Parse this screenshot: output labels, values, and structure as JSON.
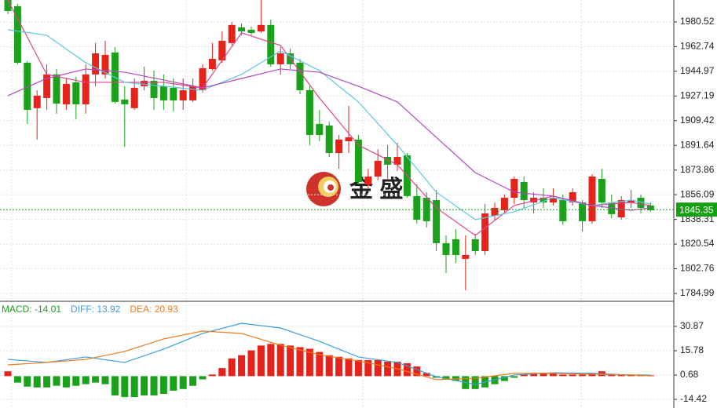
{
  "chart_data": [
    {
      "type": "candlestick",
      "up_color": "#e5231b",
      "down_color": "#1ba11b",
      "open": [
        1996.3,
        1991.8,
        1951.1,
        1918.4,
        1925.7,
        1942.7,
        1921.2,
        1937.0,
        1921.2,
        1942.7,
        1942.7,
        1958.5,
        1924.6,
        1918.4,
        1934.2,
        1938.1,
        1934.2,
        1933.0,
        1924.0,
        1924.0,
        1931.3,
        1946.6,
        1952.8,
        1965.3,
        1976.6,
        1974.9,
        1973.7,
        1978.3,
        1950.0,
        1957.9,
        1951.1,
        1931.3,
        1907.0,
        1905.9,
        1886.1,
        1894.6,
        1895.8,
        1863.5,
        1869.2,
        1883.3,
        1877.7,
        1884.4,
        1855.1,
        1853.9,
        1852.2,
        1821.2,
        1824.0,
        1809.9,
        1824.0,
        1815.5,
        1840.9,
        1844.9,
        1853.9,
        1865.2,
        1850.5,
        1853.9,
        1850.5,
        1852.2,
        1850.5,
        1850.5,
        1837.0,
        1867.5,
        1850.5,
        1839.8,
        1850.5,
        1853.9,
        1848.3
      ],
      "high": [
        1996.3,
        1993.5,
        1952.3,
        1931.3,
        1950.0,
        1946.6,
        1939.8,
        1941.0,
        1950.0,
        1965.3,
        1966.9,
        1962.4,
        1934.2,
        1939.8,
        1948.3,
        1945.5,
        1942.7,
        1939.8,
        1939.8,
        1939.8,
        1950.0,
        1965.3,
        1973.7,
        1980.5,
        1979.4,
        1977.1,
        1996.3,
        1982.2,
        1962.4,
        1961.3,
        1953.9,
        1934.2,
        1917.2,
        1908.7,
        1899.1,
        1920.1,
        1899.1,
        1874.8,
        1888.9,
        1891.8,
        1893.5,
        1886.1,
        1863.5,
        1857.9,
        1859.6,
        1826.8,
        1831.3,
        1826.8,
        1827.9,
        1849.4,
        1850.5,
        1856.2,
        1869.2,
        1869.2,
        1857.9,
        1860.7,
        1860.7,
        1856.2,
        1860.7,
        1852.2,
        1870.9,
        1874.8,
        1856.2,
        1855.1,
        1859.6,
        1856.2,
        1850.5
      ],
      "low": [
        1986.2,
        1950.0,
        1907.0,
        1895.8,
        1917.2,
        1914.4,
        1917.2,
        1910.4,
        1914.4,
        1934.2,
        1939.8,
        1921.7,
        1890.7,
        1917.2,
        1931.3,
        1917.2,
        1917.2,
        1916.1,
        1917.2,
        1922.9,
        1929.7,
        1945.5,
        1951.1,
        1963.6,
        1970.9,
        1970.9,
        1972.6,
        1948.3,
        1942.7,
        1946.6,
        1928.5,
        1891.8,
        1894.6,
        1883.3,
        1874.8,
        1886.1,
        1863.5,
        1860.7,
        1866.4,
        1867.5,
        1873.1,
        1853.9,
        1835.3,
        1832.5,
        1815.5,
        1799.7,
        1807.0,
        1787.2,
        1812.7,
        1812.7,
        1838.1,
        1842.6,
        1849.4,
        1846.6,
        1842.6,
        1846.6,
        1848.3,
        1834.2,
        1848.3,
        1829.6,
        1835.3,
        1846.6,
        1839.2,
        1838.1,
        1846.6,
        1842.6,
        1843.8
      ],
      "close": [
        1988.4,
        1951.1,
        1917.2,
        1927.4,
        1942.7,
        1921.7,
        1935.9,
        1921.2,
        1942.7,
        1957.9,
        1956.8,
        1922.9,
        1921.2,
        1933.0,
        1938.1,
        1925.7,
        1924.0,
        1924.0,
        1931.3,
        1934.2,
        1947.2,
        1953.9,
        1966.9,
        1978.3,
        1973.7,
        1972.6,
        1978.3,
        1950.0,
        1957.9,
        1950.0,
        1931.3,
        1899.1,
        1899.1,
        1886.1,
        1895.8,
        1897.4,
        1865.2,
        1869.2,
        1880.5,
        1877.7,
        1883.3,
        1855.1,
        1838.1,
        1837.0,
        1821.2,
        1812.7,
        1812.7,
        1812.7,
        1815.5,
        1842.6,
        1846.6,
        1853.9,
        1867.5,
        1852.2,
        1853.9,
        1850.5,
        1853.9,
        1837.0,
        1857.9,
        1837.0,
        1869.2,
        1850.5,
        1842.1,
        1852.2,
        1852.2,
        1846.6,
        1844.9
      ],
      "lines": [
        {
          "color": "#e2418c",
          "x": [
            0,
            4,
            8,
            12,
            16,
            20,
            24,
            28,
            32,
            36,
            40,
            44,
            48,
            52,
            56,
            60,
            64,
            66
          ],
          "values": [
            1996.3,
            1942.7,
            1937.0,
            1937.0,
            1937.0,
            1933.0,
            1972.6,
            1963.6,
            1925.7,
            1891.8,
            1877.7,
            1846.6,
            1826.8,
            1848.3,
            1855.1,
            1848.3,
            1850.5,
            1848.3
          ]
        },
        {
          "color": "#5ec6de",
          "x": [
            0,
            4,
            8,
            12,
            16,
            20,
            24,
            28,
            32,
            36,
            40,
            44,
            48,
            52,
            56,
            60,
            64,
            66
          ],
          "values": [
            1974.9,
            1970.9,
            1951.1,
            1937.0,
            1934.2,
            1931.3,
            1942.7,
            1959.6,
            1945.5,
            1922.9,
            1891.8,
            1857.9,
            1838.1,
            1843.8,
            1853.9,
            1848.3,
            1852.2,
            1849.4
          ]
        },
        {
          "color": "#b447c2",
          "x": [
            0,
            4,
            8,
            12,
            16,
            20,
            24,
            28,
            32,
            36,
            40,
            44,
            48,
            52,
            56,
            60,
            64,
            66
          ],
          "values": [
            1927.4,
            1939.8,
            1946.6,
            1944.3,
            1938.7,
            1933.0,
            1939.8,
            1946.6,
            1944.3,
            1934.2,
            1922.9,
            1897.4,
            1872.0,
            1857.9,
            1855.1,
            1848.3,
            1844.9,
            1846.6
          ]
        }
      ],
      "ylim": [
        1779.9,
        1996.3
      ],
      "yticks": [
        1784.99,
        1802.76,
        1820.54,
        1838.31,
        1856.09,
        1873.86,
        1891.64,
        1909.42,
        1927.19,
        1944.97,
        1962.74,
        1980.52
      ],
      "grid": true,
      "last_price": 1845.35,
      "last_color": "#13a013",
      "watermark": "金 盛"
    },
    {
      "type": "macd",
      "up_color": "#e5231b",
      "down_color": "#1ba11b",
      "legend": [
        {
          "text": "MACD: -14.01",
          "color": "#1ba11b"
        },
        {
          "text": "DIFF: 13.92",
          "color": "#3a9ee0"
        },
        {
          "text": "DEA: 20.93",
          "color": "#f07a16"
        }
      ],
      "values": [
        3,
        -4,
        -6.5,
        -7,
        -7,
        -6,
        -7,
        -6,
        -5,
        -4,
        -5,
        -12,
        -13,
        -13,
        -12,
        -12,
        -11,
        -9,
        -8,
        -6,
        -2,
        1,
        5,
        11,
        13,
        16,
        19,
        20,
        20,
        19,
        18,
        17,
        15,
        13,
        12,
        11,
        10,
        10,
        10,
        9,
        9,
        8,
        6,
        2,
        -1,
        -2,
        -3,
        -8,
        -8,
        -7,
        -5,
        -3,
        -1,
        1,
        2,
        2,
        2,
        1,
        1,
        1,
        2,
        3,
        1,
        1,
        1,
        1,
        0.5
      ],
      "lines": [
        {
          "color": "#3a9ee0",
          "x": [
            0,
            4,
            8,
            12,
            16,
            20,
            24,
            28,
            32,
            36,
            40,
            44,
            48,
            52,
            56,
            60,
            64,
            66
          ],
          "values": [
            10.4,
            8.5,
            11.9,
            8.5,
            16.8,
            26.5,
            32.8,
            29.9,
            21.6,
            11.9,
            8.5,
            -0.3,
            -5.2,
            0.7,
            2.1,
            1.7,
            0.7,
            0.7
          ]
        },
        {
          "color": "#f07a16",
          "x": [
            0,
            4,
            8,
            12,
            16,
            20,
            24,
            28,
            32,
            36,
            40,
            44,
            48,
            52,
            56,
            60,
            64,
            66
          ],
          "values": [
            7.0,
            8.5,
            10.4,
            15.3,
            23.1,
            28.0,
            26.5,
            19.2,
            13.3,
            9.4,
            4.6,
            -2.2,
            -1.3,
            1.7,
            1.7,
            1.2,
            0.7,
            0.2
          ]
        }
      ],
      "ylim": [
        -17.34,
        45.97
      ],
      "yticks": [
        30.87,
        15.78,
        0.68,
        -14.42
      ],
      "grid": true
    }
  ]
}
